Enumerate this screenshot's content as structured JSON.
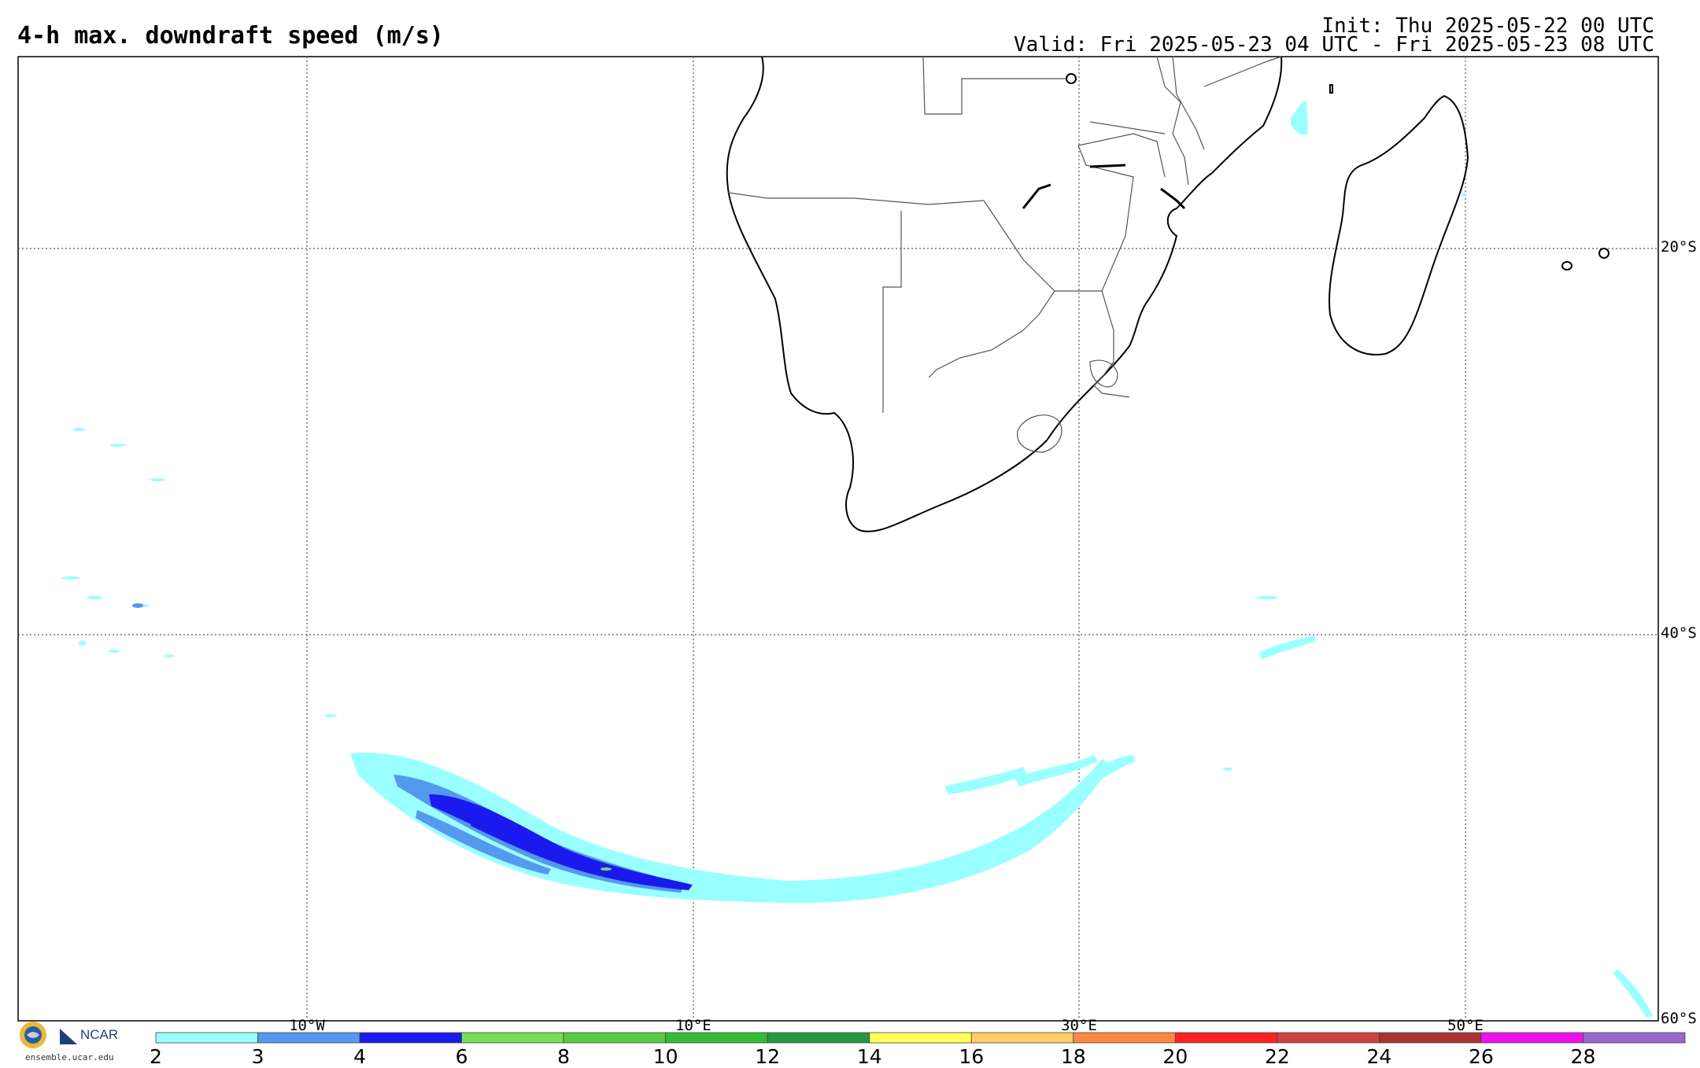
{
  "header": {
    "title": "4-h max. downdraft speed (m/s)",
    "init": "Init: Thu 2025-05-22 00 UTC",
    "valid": "Valid: Fri 2025-05-23 04 UTC - Fri 2025-05-23 08 UTC"
  },
  "map": {
    "projection": "cylindrical",
    "lon_range": [
      -25,
      60
    ],
    "lat_range": [
      -60,
      -10
    ],
    "grid_lines": "dotted",
    "lat_labels": [
      "20°S",
      "40°S",
      "60°S"
    ],
    "lon_labels": [
      "10°W",
      "10°E",
      "30°E",
      "50°E"
    ],
    "regions_shown": "Southern Africa, Madagascar, South Atlantic and Southern Indian Ocean",
    "colors": {
      "coast": "#000000",
      "border": "#555555",
      "grid": "#555555"
    }
  },
  "colorbar": {
    "labels": [
      "2",
      "3",
      "4",
      "6",
      "8",
      "10",
      "12",
      "14",
      "16",
      "18",
      "20",
      "22",
      "24",
      "26",
      "28"
    ],
    "colors": [
      "#99ffff",
      "#5599ee",
      "#1a1aee",
      "#77dd55",
      "#55cc44",
      "#33bb33",
      "#229944",
      "#ffff55",
      "#ffcc66",
      "#ff8844",
      "#ff2222",
      "#cc4444",
      "#aa3333",
      "#ee11ee",
      "#9966cc"
    ]
  },
  "logos": {
    "nsf_icon": "nsf-globe-logo",
    "ncar_icon": "ncar-logo",
    "ncar_label": "NCAR",
    "site": "ensemble.ucar.edu"
  }
}
